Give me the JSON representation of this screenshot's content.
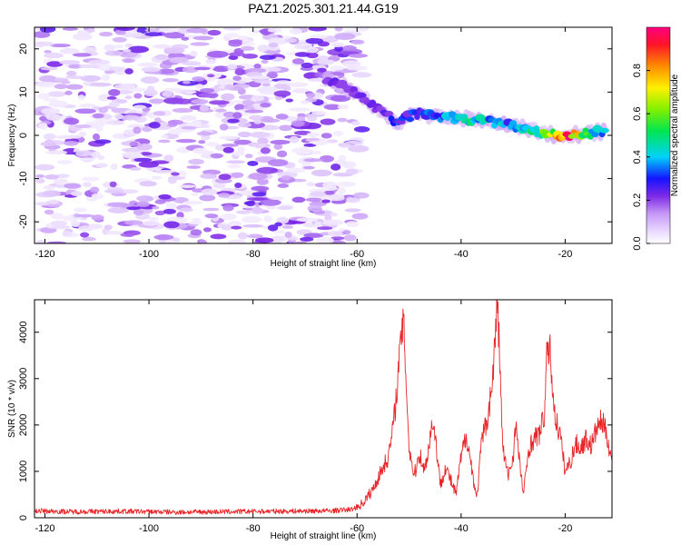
{
  "title": "PAZ1.2025.301.21.44.G19",
  "chart_data": [
    {
      "type": "heatmap",
      "name": "spectrogram",
      "xlabel": "Height of straight line (km)",
      "ylabel": "Frequency (Hz)",
      "xlim": [
        -122,
        -11
      ],
      "ylim": [
        -25,
        25
      ],
      "xticks": [
        -120,
        -100,
        -80,
        -60,
        -40,
        -20
      ],
      "yticks": [
        -20,
        -10,
        0,
        10,
        20
      ],
      "colorbar": {
        "label": "Normalized spectral amplitude",
        "range": [
          0,
          1
        ],
        "ticks": [
          0.0,
          0.2,
          0.4,
          0.6,
          0.8
        ]
      },
      "noise_region": {
        "x_range": [
          -121,
          -59
        ],
        "freq_range": [
          -25,
          25
        ],
        "typical_amplitude": [
          0.03,
          0.25
        ]
      },
      "signal_ridge": [
        {
          "x": -66,
          "freq": 13,
          "amp": 0.22
        },
        {
          "x": -62,
          "freq": 11,
          "amp": 0.2
        },
        {
          "x": -58,
          "freq": 8,
          "amp": 0.22
        },
        {
          "x": -55,
          "freq": 5,
          "amp": 0.25
        },
        {
          "x": -52,
          "freq": 3,
          "amp": 0.3
        },
        {
          "x": -49,
          "freq": 5,
          "amp": 0.3
        },
        {
          "x": -45,
          "freq": 4.5,
          "amp": 0.35
        },
        {
          "x": -41,
          "freq": 4,
          "amp": 0.4
        },
        {
          "x": -38,
          "freq": 3.5,
          "amp": 0.45
        },
        {
          "x": -34,
          "freq": 3,
          "amp": 0.42
        },
        {
          "x": -30,
          "freq": 2,
          "amp": 0.35
        },
        {
          "x": -26,
          "freq": 1,
          "amp": 0.5
        },
        {
          "x": -22,
          "freq": 0,
          "amp": 0.7
        },
        {
          "x": -19,
          "freq": 0,
          "amp": 0.9
        },
        {
          "x": -16,
          "freq": 0.5,
          "amp": 0.55
        },
        {
          "x": -12,
          "freq": 1,
          "amp": 0.4
        }
      ]
    },
    {
      "type": "line",
      "name": "snr",
      "xlabel": "Height of straight line (km)",
      "ylabel": "SNR (10 * v/v)",
      "xlim": [
        -122,
        -11
      ],
      "ylim": [
        0,
        4700
      ],
      "xticks": [
        -120,
        -100,
        -80,
        -60,
        -40,
        -20
      ],
      "yticks": [
        0,
        1000,
        2000,
        3000,
        4000
      ],
      "color": "#e8262a",
      "series": [
        {
          "name": "SNR",
          "x": [
            -122,
            -115,
            -105,
            -95,
            -85,
            -75,
            -65,
            -61,
            -59,
            -57,
            -55,
            -54,
            -53,
            -52,
            -51.5,
            -51,
            -50.5,
            -50,
            -49,
            -48,
            -47,
            -46,
            -45.5,
            -45,
            -44,
            -43,
            -42,
            -41,
            -40,
            -39,
            -38,
            -37,
            -36,
            -35,
            -34,
            -33.5,
            -33,
            -32.5,
            -32,
            -31,
            -30,
            -29.5,
            -29,
            -28,
            -27,
            -26,
            -25,
            -24,
            -23.5,
            -23,
            -22,
            -21,
            -20,
            -19,
            -18,
            -17,
            -16,
            -15,
            -14,
            -13,
            -12,
            -11
          ],
          "y": [
            150,
            130,
            140,
            120,
            130,
            140,
            150,
            180,
            300,
            600,
            1100,
            1300,
            2000,
            3200,
            4000,
            4100,
            2800,
            1500,
            900,
            1400,
            1000,
            1700,
            2100,
            1800,
            700,
            1100,
            800,
            500,
            1300,
            1800,
            1100,
            400,
            1700,
            2100,
            2900,
            3800,
            4650,
            3200,
            1500,
            900,
            1300,
            2100,
            1400,
            500,
            1500,
            1700,
            1800,
            2200,
            3500,
            3700,
            2200,
            1800,
            1000,
            1200,
            1600,
            1500,
            1700,
            1550,
            1900,
            2100,
            1800,
            1200
          ]
        }
      ]
    }
  ]
}
